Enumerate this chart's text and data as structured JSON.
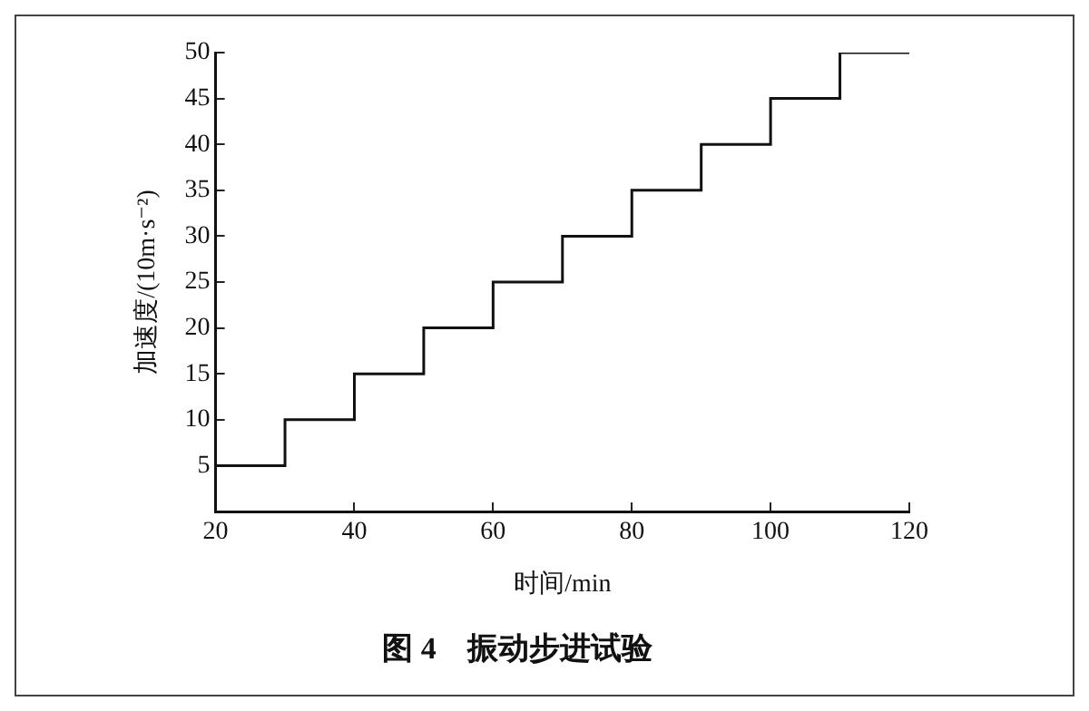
{
  "chart_data": {
    "type": "step",
    "title": "图 4　振动步进试验",
    "xlabel": "时间/min",
    "ylabel": "加速度/(10m·s⁻²)",
    "x": [
      20,
      30,
      40,
      50,
      60,
      70,
      80,
      90,
      100,
      110,
      120
    ],
    "series": [
      {
        "color": "#111111",
        "values": [
          5,
          10,
          15,
          20,
          25,
          30,
          35,
          40,
          45,
          50,
          50
        ]
      }
    ],
    "xlim": [
      20,
      120
    ],
    "xticks": [
      20,
      40,
      60,
      80,
      100,
      120
    ],
    "ylim": [
      0,
      50
    ],
    "yticks": [
      5,
      10,
      15,
      20,
      25,
      30,
      35,
      40,
      45,
      50
    ],
    "grid": false,
    "marker": "none"
  }
}
